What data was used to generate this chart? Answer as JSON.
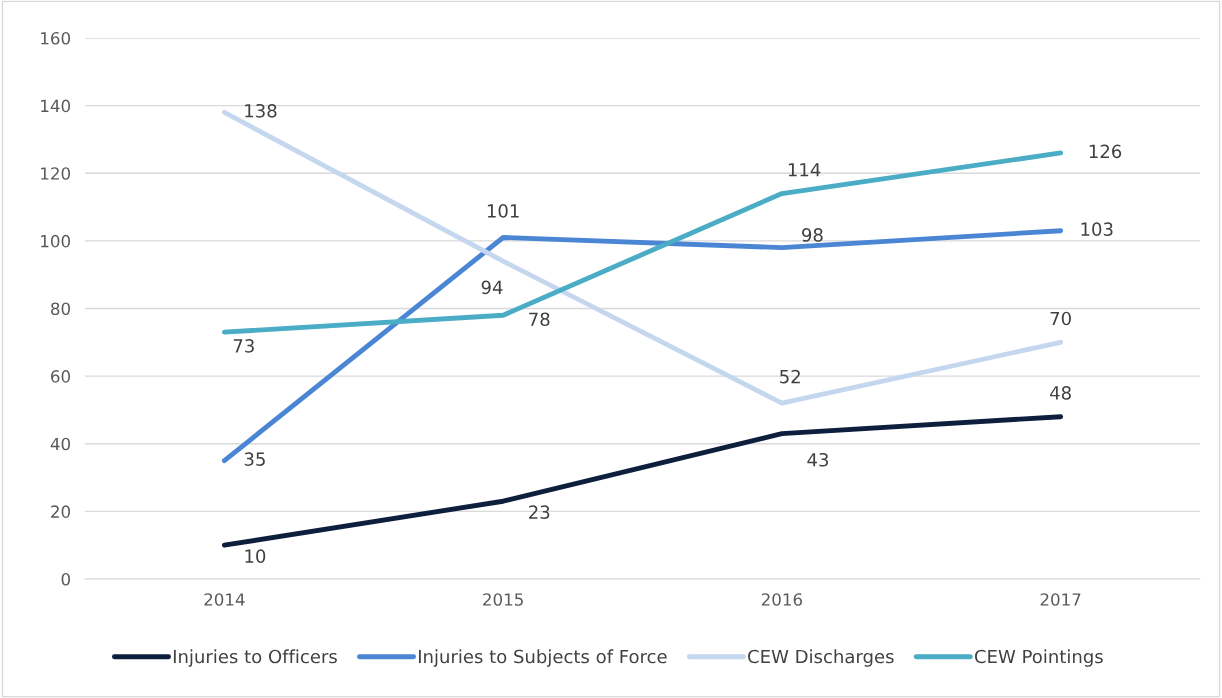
{
  "chart_data": {
    "type": "line",
    "categories": [
      "2014",
      "2015",
      "2016",
      "2017"
    ],
    "series": [
      {
        "name": "Injuries to Officers",
        "color": "#0e1f3d",
        "values": [
          10,
          23,
          43,
          48
        ]
      },
      {
        "name": "Injuries to Subjects of Force",
        "color": "#4a86d4",
        "values": [
          35,
          101,
          98,
          103
        ]
      },
      {
        "name": "CEW Discharges",
        "color": "#c5d7ee",
        "values": [
          138,
          94,
          52,
          70
        ]
      },
      {
        "name": "CEW Pointings",
        "color": "#4bacc6",
        "values": [
          73,
          78,
          114,
          126
        ]
      }
    ],
    "ylim": [
      0,
      160
    ],
    "yticks": [
      0,
      20,
      40,
      60,
      80,
      100,
      120,
      140,
      160
    ],
    "grid": "y",
    "legend": "bottom",
    "data_labels": true,
    "marker": "none",
    "line_style": "solid"
  }
}
